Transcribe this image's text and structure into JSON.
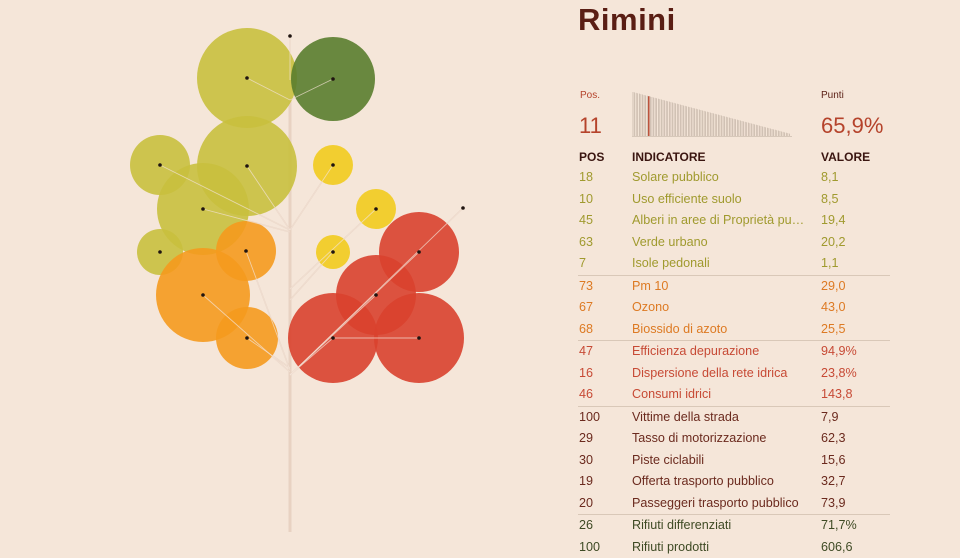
{
  "page": {
    "city": "Rimini",
    "pos_label": "Pos.",
    "pos_value": "11",
    "points_label": "Punti",
    "points_value": "65,9%",
    "columns": [
      "POS",
      "INDICATORE",
      "VALORE"
    ]
  },
  "colors": {
    "background": "#f5e6d9",
    "title": "#5a1e14",
    "accent": "#b5432b",
    "trunk": "#e8d2c2",
    "group_colors": [
      "#a09a2e",
      "#dd7a23",
      "#c74a35",
      "#6b2a1e",
      "#3e4a24"
    ]
  },
  "chart_data": {
    "type": "table",
    "columns": [
      "POS",
      "INDICATORE",
      "VALORE"
    ],
    "rows": [
      {
        "pos": "18",
        "indicator": "Solare pubblico",
        "value": "8,1",
        "group": 0
      },
      {
        "pos": "10",
        "indicator": "Uso efficiente suolo",
        "value": "8,5",
        "group": 0
      },
      {
        "pos": "45",
        "indicator": "Alberi in aree di Proprietà pu…",
        "value": "19,4",
        "group": 0
      },
      {
        "pos": "63",
        "indicator": "Verde urbano",
        "value": "20,2",
        "group": 0
      },
      {
        "pos": "7",
        "indicator": "Isole pedonali",
        "value": "1,1",
        "group": 0
      },
      {
        "pos": "73",
        "indicator": "Pm 10",
        "value": "29,0",
        "group": 1
      },
      {
        "pos": "67",
        "indicator": "Ozono",
        "value": "43,0",
        "group": 1
      },
      {
        "pos": "68",
        "indicator": "Biossido di azoto",
        "value": "25,5",
        "group": 1
      },
      {
        "pos": "47",
        "indicator": "Efficienza depurazione",
        "value": "94,9%",
        "group": 2
      },
      {
        "pos": "16",
        "indicator": "Dispersione della rete idrica",
        "value": "23,8%",
        "group": 2
      },
      {
        "pos": "46",
        "indicator": "Consumi idrici",
        "value": "143,8",
        "group": 2
      },
      {
        "pos": "100",
        "indicator": "Vittime della strada",
        "value": "7,9",
        "group": 3
      },
      {
        "pos": "29",
        "indicator": "Tasso di motorizzazione",
        "value": "62,3",
        "group": 3
      },
      {
        "pos": "30",
        "indicator": "Piste ciclabili",
        "value": "15,6",
        "group": 3
      },
      {
        "pos": "19",
        "indicator": "Offerta trasporto pubblico",
        "value": "32,7",
        "group": 3
      },
      {
        "pos": "20",
        "indicator": "Passeggeri trasporto pubblico",
        "value": "73,9",
        "group": 3
      },
      {
        "pos": "26",
        "indicator": "Rifiuti differenziati",
        "value": "71,7%",
        "group": 4
      },
      {
        "pos": "100",
        "indicator": "Rifiuti prodotti",
        "value": "606,6",
        "group": 4
      }
    ],
    "tree_circles": [
      {
        "color": "#c9c03e"
      },
      {
        "color": "#5a7d2e"
      },
      {
        "color": "#c9c03e"
      },
      {
        "color": "#c9c03e"
      },
      {
        "color": "#f2cb1d"
      },
      {
        "color": "#c9c03e"
      },
      {
        "color": "#f2cb1d"
      },
      {
        "color": "#c9c03e"
      },
      {
        "color": "#f59a1e"
      },
      {
        "color": "#f2cb1d"
      },
      {
        "color": "#d9412d"
      },
      {
        "color": "#f59a1e"
      },
      {
        "color": "#d9412d"
      },
      {
        "color": "#d9412d"
      },
      {
        "color": "#d9412d"
      },
      {
        "color": "#f59a1e"
      }
    ]
  }
}
